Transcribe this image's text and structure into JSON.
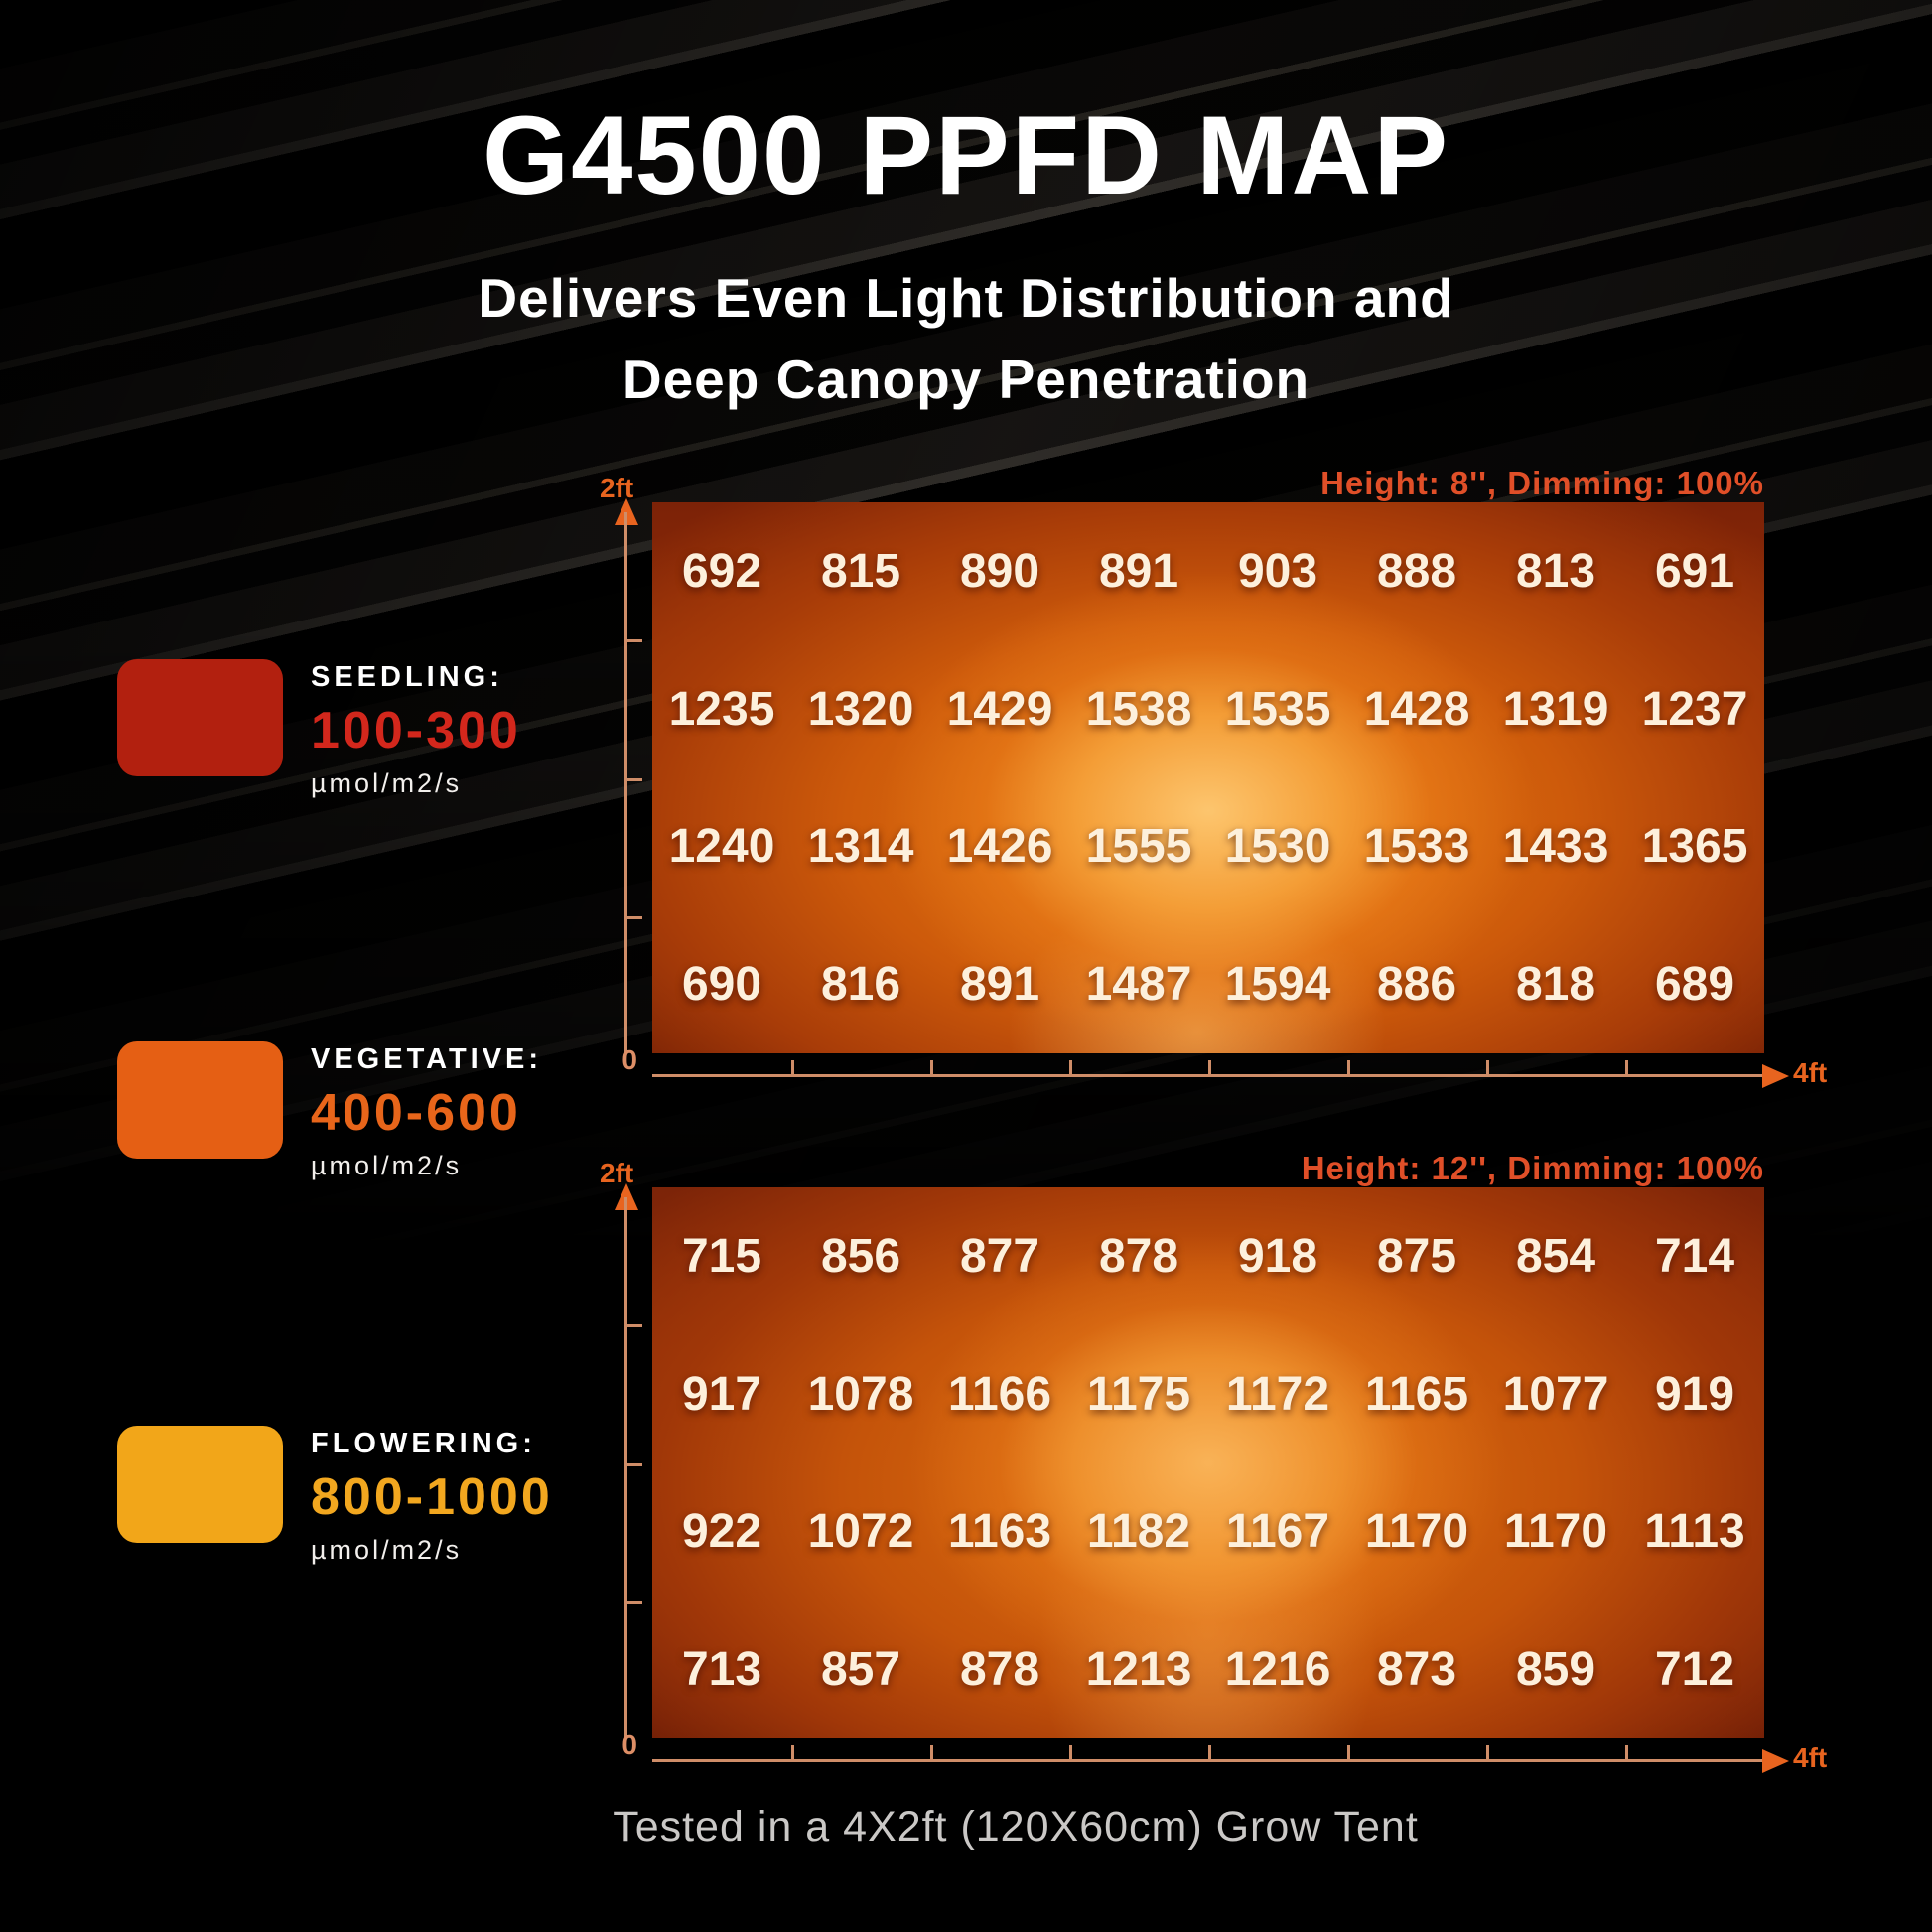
{
  "page": {
    "title": "G4500 PPFD MAP",
    "subtitle_line1": "Delivers Even Light Distribution and",
    "subtitle_line2": "Deep Canopy Penetration",
    "footer": "Tested in a 4X2ft (120X60cm) Grow Tent"
  },
  "legend": {
    "items": [
      {
        "name": "SEEDLING:",
        "range": "100-300",
        "unit": "µmol/m2/s",
        "swatch_color": "#b2200f",
        "range_color": "#d3271c"
      },
      {
        "name": "VEGETATIVE:",
        "range": "400-600",
        "unit": "µmol/m2/s",
        "swatch_color": "#e55f14",
        "range_color": "#e8651a"
      },
      {
        "name": "FLOWERING:",
        "range": "800-1000",
        "unit": "µmol/m2/s",
        "swatch_color": "#f2a619",
        "range_color": "#f2a71f"
      }
    ]
  },
  "chart_data": [
    {
      "type": "heatmap",
      "condition_label": "Height: 8'', Dimming: 100%",
      "y_axis_label": "2ft",
      "origin_label": "0",
      "x_axis_label": "4ft",
      "x_range_ft": [
        0,
        4
      ],
      "y_range_ft": [
        0,
        2
      ],
      "rows": 4,
      "cols": 8,
      "units": "µmol/m2/s",
      "values": [
        [
          692,
          815,
          890,
          891,
          903,
          888,
          813,
          691
        ],
        [
          1235,
          1320,
          1429,
          1538,
          1535,
          1428,
          1319,
          1237
        ],
        [
          1240,
          1314,
          1426,
          1555,
          1530,
          1533,
          1433,
          1365
        ],
        [
          690,
          816,
          891,
          1487,
          1594,
          886,
          818,
          689
        ]
      ]
    },
    {
      "type": "heatmap",
      "condition_label": "Height: 12'', Dimming: 100%",
      "y_axis_label": "2ft",
      "origin_label": "0",
      "x_axis_label": "4ft",
      "x_range_ft": [
        0,
        4
      ],
      "y_range_ft": [
        0,
        2
      ],
      "rows": 4,
      "cols": 8,
      "units": "µmol/m2/s",
      "values": [
        [
          715,
          856,
          877,
          878,
          918,
          875,
          854,
          714
        ],
        [
          917,
          1078,
          1166,
          1175,
          1172,
          1165,
          1077,
          919
        ],
        [
          922,
          1072,
          1163,
          1182,
          1167,
          1170,
          1170,
          1113
        ],
        [
          713,
          857,
          878,
          1213,
          1216,
          873,
          859,
          712
        ]
      ]
    }
  ],
  "colors": {
    "accent_orange": "#e8641f",
    "condition_label": "#e04f28",
    "axis_line": "#cf8d68",
    "number_text": "#fdf0dc",
    "footer_text": "#cac8c6"
  }
}
